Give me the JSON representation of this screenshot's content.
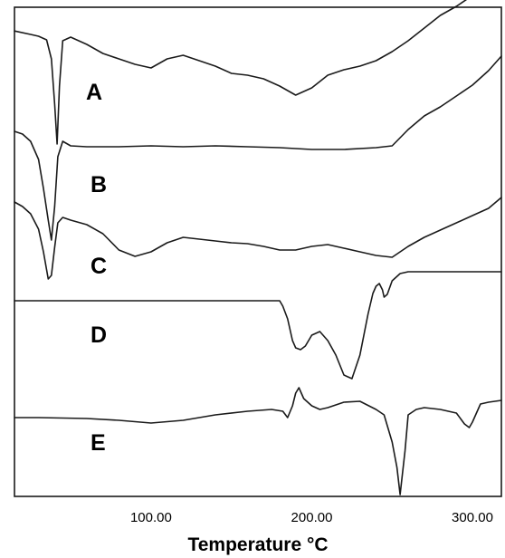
{
  "chart_data": {
    "type": "line",
    "xlabel": "Temperature °C",
    "ylabel": "",
    "xlim": [
      15,
      318
    ],
    "xticks": [
      {
        "value": 100,
        "label": "100.00"
      },
      {
        "value": 200,
        "label": "200.00"
      },
      {
        "value": 300,
        "label": "300.00"
      }
    ],
    "grid": false,
    "series": [
      {
        "name": "A",
        "x": [
          15,
          25,
          30,
          35,
          38,
          40,
          41.5,
          43,
          45,
          50,
          60,
          70,
          80,
          90,
          100,
          110,
          120,
          130,
          140,
          150,
          160,
          170,
          180,
          190,
          200,
          210,
          220,
          230,
          240,
          250,
          260,
          270,
          280,
          290,
          300,
          310,
          318
        ],
        "y": [
          0.8,
          -3,
          -5,
          -9,
          -30,
          -80,
          -124,
          -60,
          -10,
          -6,
          -14,
          -24,
          -30,
          -36,
          -40,
          -30,
          -26,
          -32,
          -38,
          -46,
          -48,
          -52,
          -60,
          -70,
          -62,
          -48,
          -42,
          -38,
          -32,
          -22,
          -10,
          4,
          18,
          28,
          40,
          48,
          52
        ]
      },
      {
        "name": "B",
        "x": [
          15,
          20,
          25,
          30,
          33,
          36,
          38,
          40,
          42,
          45,
          50,
          60,
          80,
          100,
          120,
          140,
          160,
          180,
          200,
          220,
          240,
          250,
          260,
          270,
          280,
          290,
          300,
          310,
          318
        ],
        "y": [
          3,
          0,
          -8,
          -28,
          -60,
          -95,
          -117,
          -80,
          -25,
          -8,
          -13,
          -14,
          -14,
          -13,
          -14,
          -13,
          -14,
          -15,
          -17,
          -17,
          -15,
          -13,
          5,
          20,
          30,
          42,
          54,
          70,
          86
        ]
      },
      {
        "name": "C",
        "x": [
          15,
          20,
          25,
          30,
          33,
          36,
          38,
          40,
          42,
          45,
          50,
          60,
          70,
          80,
          90,
          100,
          110,
          120,
          130,
          140,
          150,
          160,
          170,
          180,
          190,
          200,
          210,
          220,
          230,
          240,
          250,
          260,
          270,
          280,
          290,
          300,
          310,
          318
        ],
        "y": [
          5,
          0,
          -8,
          -25,
          -50,
          -80,
          -76,
          -45,
          -18,
          -12,
          -15,
          -20,
          -30,
          -48,
          -55,
          -50,
          -40,
          -34,
          -36,
          -38,
          -40,
          -41,
          -44,
          -48,
          -48,
          -44,
          -42,
          -46,
          -50,
          -54,
          -56,
          -44,
          -34,
          -26,
          -18,
          -10,
          -2,
          10
        ]
      },
      {
        "name": "D",
        "x": [
          15,
          100,
          160,
          180,
          182,
          185,
          188,
          190,
          193,
          196,
          200,
          205,
          210,
          215,
          220,
          225,
          230,
          235,
          238,
          240,
          242,
          244,
          245,
          247,
          250,
          255,
          260,
          280,
          300,
          318
        ],
        "y": [
          0,
          0,
          0,
          0,
          -6,
          -20,
          -44,
          -52,
          -54,
          -50,
          -38,
          -34,
          -44,
          -60,
          -82,
          -86,
          -60,
          -15,
          8,
          16,
          19,
          12,
          4,
          7,
          22,
          30,
          32,
          32,
          32,
          32
        ]
      },
      {
        "name": "E",
        "x": [
          15,
          30,
          60,
          80,
          100,
          120,
          140,
          160,
          175,
          182,
          185,
          188,
          190,
          192,
          195,
          200,
          205,
          210,
          220,
          230,
          240,
          245,
          250,
          253,
          255,
          258,
          260,
          265,
          270,
          280,
          290,
          295,
          298,
          300,
          305,
          310,
          318
        ],
        "y": [
          -3,
          -3,
          -4,
          -6,
          -9,
          -6,
          0,
          4,
          6,
          4,
          -3,
          10,
          24,
          30,
          18,
          10,
          6,
          8,
          14,
          15,
          6,
          0,
          -30,
          -58,
          -88,
          -40,
          0,
          6,
          8,
          6,
          2,
          -10,
          -14,
          -8,
          12,
          14,
          16
        ]
      }
    ]
  }
}
